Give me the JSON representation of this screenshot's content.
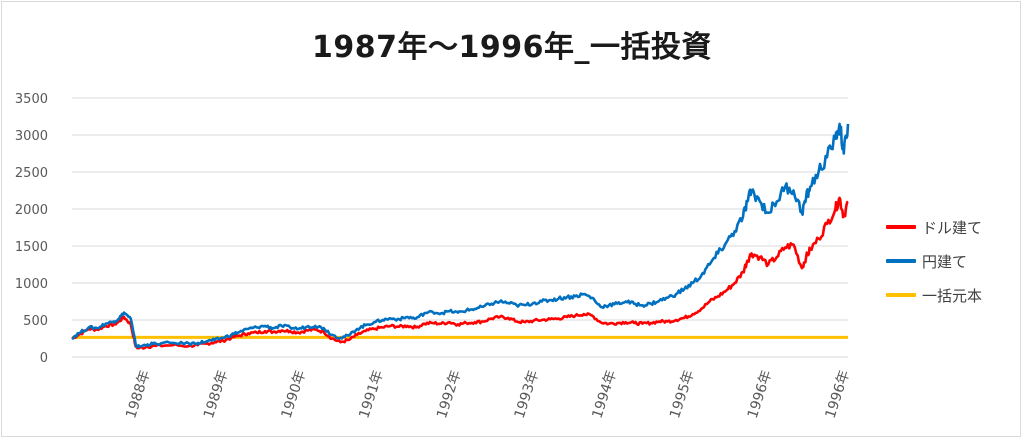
{
  "chart_data": {
    "type": "line",
    "title": "1987年～1996年_一括投資",
    "xlabel": "",
    "ylabel": "",
    "ylim": [
      0,
      3500
    ],
    "yticks": [
      0,
      500,
      1000,
      1500,
      2000,
      2500,
      3000,
      3500
    ],
    "xtick_labels": [
      "1988年",
      "1989年",
      "1990年",
      "1991年",
      "1992年",
      "1993年",
      "1994年",
      "1995年",
      "1996年",
      "1996年"
    ],
    "grid": "horizontal",
    "legend_position": "right",
    "series": [
      {
        "name": "ドル建て",
        "color": "#ff0000",
        "points": [
          [
            0.0,
            250
          ],
          [
            0.08,
            300
          ],
          [
            0.2,
            380
          ],
          [
            0.3,
            370
          ],
          [
            0.4,
            420
          ],
          [
            0.5,
            440
          ],
          [
            0.55,
            470
          ],
          [
            0.62,
            540
          ],
          [
            0.7,
            440
          ],
          [
            0.76,
            140
          ],
          [
            0.8,
            120
          ],
          [
            0.9,
            140
          ],
          [
            1.0,
            150
          ],
          [
            1.2,
            160
          ],
          [
            1.4,
            150
          ],
          [
            1.5,
            160
          ],
          [
            1.6,
            180
          ],
          [
            1.7,
            200
          ],
          [
            1.8,
            220
          ],
          [
            1.9,
            260
          ],
          [
            2.0,
            290
          ],
          [
            2.1,
            320
          ],
          [
            2.2,
            330
          ],
          [
            2.3,
            350
          ],
          [
            2.4,
            340
          ],
          [
            2.5,
            360
          ],
          [
            2.6,
            350
          ],
          [
            2.7,
            330
          ],
          [
            2.8,
            360
          ],
          [
            2.9,
            370
          ],
          [
            3.0,
            340
          ],
          [
            3.1,
            250
          ],
          [
            3.2,
            200
          ],
          [
            3.3,
            230
          ],
          [
            3.4,
            300
          ],
          [
            3.5,
            350
          ],
          [
            3.6,
            380
          ],
          [
            3.7,
            400
          ],
          [
            3.8,
            420
          ],
          [
            3.9,
            410
          ],
          [
            4.0,
            420
          ],
          [
            4.1,
            400
          ],
          [
            4.2,
            450
          ],
          [
            4.3,
            460
          ],
          [
            4.4,
            450
          ],
          [
            4.5,
            470
          ],
          [
            4.6,
            440
          ],
          [
            4.7,
            460
          ],
          [
            4.8,
            470
          ],
          [
            4.9,
            480
          ],
          [
            5.0,
            520
          ],
          [
            5.1,
            540
          ],
          [
            5.2,
            530
          ],
          [
            5.3,
            480
          ],
          [
            5.4,
            470
          ],
          [
            5.5,
            490
          ],
          [
            5.6,
            500
          ],
          [
            5.7,
            510
          ],
          [
            5.8,
            520
          ],
          [
            5.9,
            540
          ],
          [
            6.0,
            560
          ],
          [
            6.1,
            580
          ],
          [
            6.2,
            560
          ],
          [
            6.3,
            470
          ],
          [
            6.4,
            450
          ],
          [
            6.5,
            460
          ],
          [
            6.6,
            470
          ],
          [
            6.7,
            460
          ],
          [
            6.8,
            450
          ],
          [
            6.9,
            460
          ],
          [
            7.0,
            480
          ],
          [
            7.1,
            480
          ],
          [
            7.2,
            500
          ],
          [
            7.3,
            530
          ],
          [
            7.4,
            580
          ],
          [
            7.5,
            650
          ],
          [
            7.6,
            750
          ],
          [
            7.7,
            820
          ],
          [
            7.8,
            900
          ],
          [
            7.9,
            1000
          ],
          [
            8.0,
            1150
          ],
          [
            8.05,
            1300
          ],
          [
            8.1,
            1400
          ],
          [
            8.2,
            1350
          ],
          [
            8.3,
            1250
          ],
          [
            8.4,
            1350
          ],
          [
            8.5,
            1480
          ],
          [
            8.6,
            1520
          ],
          [
            8.7,
            1200
          ],
          [
            8.75,
            1350
          ],
          [
            8.8,
            1450
          ],
          [
            8.9,
            1600
          ],
          [
            9.0,
            1800
          ],
          [
            9.1,
            2000
          ],
          [
            9.15,
            2150
          ],
          [
            9.2,
            1900
          ],
          [
            9.25,
            2100
          ]
        ]
      },
      {
        "name": "円建て",
        "color": "#0070c0",
        "points": [
          [
            0.0,
            260
          ],
          [
            0.08,
            320
          ],
          [
            0.2,
            400
          ],
          [
            0.3,
            390
          ],
          [
            0.4,
            450
          ],
          [
            0.5,
            480
          ],
          [
            0.55,
            510
          ],
          [
            0.62,
            600
          ],
          [
            0.7,
            520
          ],
          [
            0.76,
            160
          ],
          [
            0.8,
            140
          ],
          [
            0.9,
            170
          ],
          [
            1.0,
            180
          ],
          [
            1.2,
            190
          ],
          [
            1.4,
            180
          ],
          [
            1.5,
            190
          ],
          [
            1.6,
            210
          ],
          [
            1.7,
            230
          ],
          [
            1.8,
            260
          ],
          [
            1.9,
            300
          ],
          [
            2.0,
            340
          ],
          [
            2.1,
            380
          ],
          [
            2.2,
            400
          ],
          [
            2.3,
            420
          ],
          [
            2.4,
            390
          ],
          [
            2.5,
            420
          ],
          [
            2.6,
            400
          ],
          [
            2.7,
            380
          ],
          [
            2.8,
            410
          ],
          [
            2.9,
            420
          ],
          [
            3.0,
            390
          ],
          [
            3.1,
            300
          ],
          [
            3.2,
            260
          ],
          [
            3.3,
            290
          ],
          [
            3.4,
            380
          ],
          [
            3.5,
            430
          ],
          [
            3.6,
            470
          ],
          [
            3.7,
            500
          ],
          [
            3.8,
            520
          ],
          [
            3.9,
            510
          ],
          [
            4.0,
            540
          ],
          [
            4.1,
            520
          ],
          [
            4.2,
            590
          ],
          [
            4.3,
            610
          ],
          [
            4.4,
            590
          ],
          [
            4.5,
            620
          ],
          [
            4.6,
            600
          ],
          [
            4.7,
            630
          ],
          [
            4.8,
            650
          ],
          [
            4.9,
            680
          ],
          [
            5.0,
            720
          ],
          [
            5.1,
            750
          ],
          [
            5.2,
            730
          ],
          [
            5.3,
            700
          ],
          [
            5.4,
            700
          ],
          [
            5.5,
            730
          ],
          [
            5.6,
            750
          ],
          [
            5.7,
            770
          ],
          [
            5.8,
            790
          ],
          [
            5.9,
            810
          ],
          [
            6.0,
            820
          ],
          [
            6.1,
            850
          ],
          [
            6.2,
            800
          ],
          [
            6.3,
            680
          ],
          [
            6.4,
            700
          ],
          [
            6.5,
            720
          ],
          [
            6.6,
            750
          ],
          [
            6.7,
            720
          ],
          [
            6.8,
            700
          ],
          [
            6.9,
            720
          ],
          [
            7.0,
            760
          ],
          [
            7.1,
            800
          ],
          [
            7.2,
            850
          ],
          [
            7.3,
            920
          ],
          [
            7.4,
            1000
          ],
          [
            7.5,
            1100
          ],
          [
            7.6,
            1250
          ],
          [
            7.7,
            1400
          ],
          [
            7.8,
            1550
          ],
          [
            7.9,
            1700
          ],
          [
            8.0,
            1900
          ],
          [
            8.05,
            2100
          ],
          [
            8.1,
            2250
          ],
          [
            8.2,
            2100
          ],
          [
            8.3,
            1950
          ],
          [
            8.4,
            2100
          ],
          [
            8.5,
            2300
          ],
          [
            8.6,
            2250
          ],
          [
            8.7,
            1950
          ],
          [
            8.75,
            2150
          ],
          [
            8.8,
            2300
          ],
          [
            8.9,
            2500
          ],
          [
            9.0,
            2700
          ],
          [
            9.1,
            2950
          ],
          [
            9.15,
            3150
          ],
          [
            9.2,
            2750
          ],
          [
            9.25,
            3150
          ]
        ]
      },
      {
        "name": "一括元本",
        "color": "#ffc000",
        "points": [
          [
            0.0,
            265
          ],
          [
            9.25,
            265
          ]
        ]
      }
    ]
  }
}
